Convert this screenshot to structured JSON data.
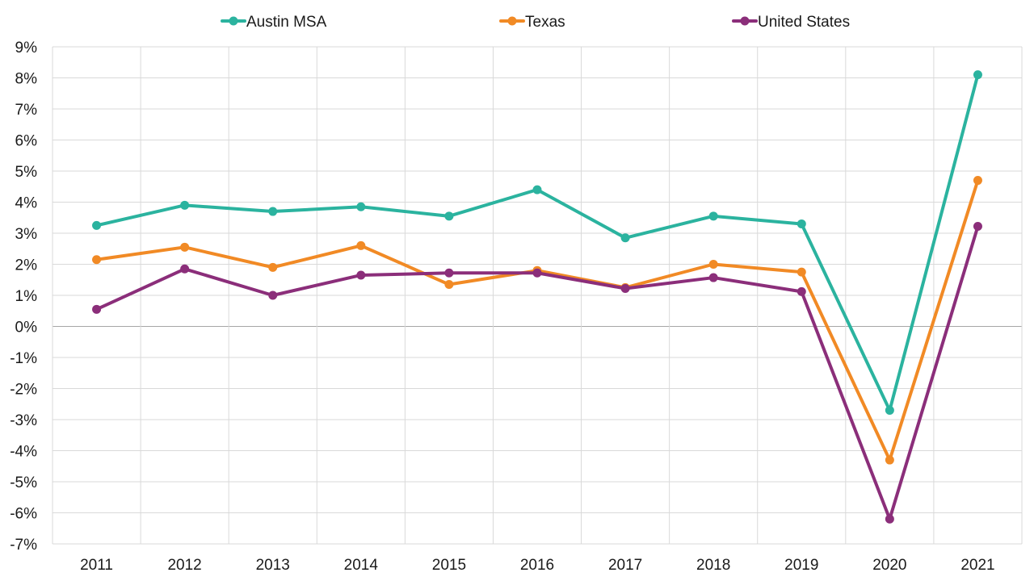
{
  "chart_data": {
    "type": "line",
    "title": "",
    "xlabel": "",
    "ylabel": "",
    "categories": [
      "2011",
      "2012",
      "2013",
      "2014",
      "2015",
      "2016",
      "2017",
      "2018",
      "2019",
      "2020",
      "2021"
    ],
    "ylim": [
      -7,
      9
    ],
    "y_ticks": [
      9,
      8,
      7,
      6,
      5,
      4,
      3,
      2,
      1,
      0,
      -1,
      -2,
      -3,
      -4,
      -5,
      -6,
      -7
    ],
    "y_tick_labels": [
      "9%",
      "8%",
      "7%",
      "6%",
      "5%",
      "4%",
      "3%",
      "2%",
      "1%",
      "0%",
      "-1%",
      "-2%",
      "-3%",
      "-4%",
      "-5%",
      "-6%",
      "-7%"
    ],
    "grid": true,
    "legend_position": "top",
    "series": [
      {
        "name": "Austin MSA",
        "color": "#2bb39f",
        "values": [
          3.25,
          3.9,
          3.7,
          3.85,
          3.55,
          4.4,
          2.85,
          3.55,
          3.3,
          -2.7,
          8.1
        ]
      },
      {
        "name": "Texas",
        "color": "#f18a25",
        "values": [
          2.15,
          2.55,
          1.9,
          2.6,
          1.35,
          1.8,
          1.25,
          2.0,
          1.75,
          -4.3,
          4.7
        ]
      },
      {
        "name": "United States",
        "color": "#8b2e7a",
        "values": [
          0.55,
          1.85,
          1.0,
          1.65,
          1.72,
          1.72,
          1.22,
          1.57,
          1.12,
          -6.2,
          3.22
        ]
      }
    ]
  }
}
